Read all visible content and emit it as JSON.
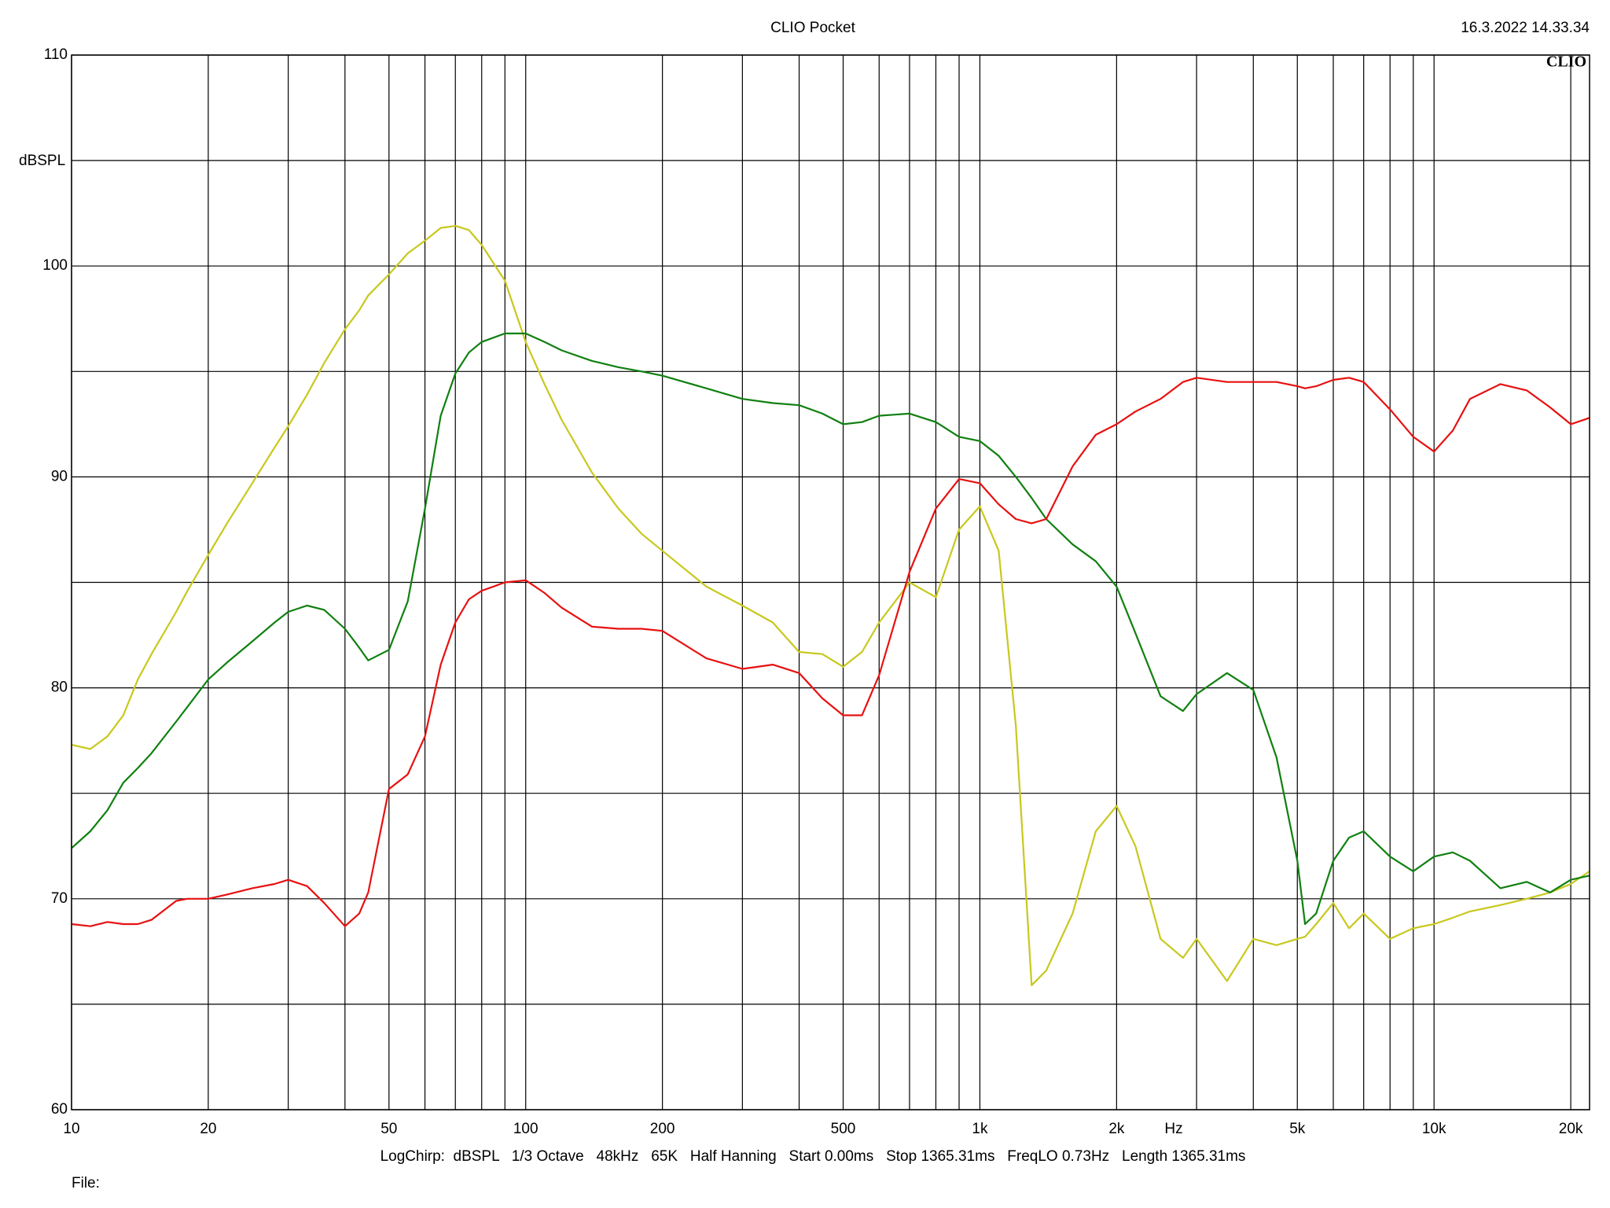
{
  "chart_data": {
    "type": "line",
    "title": "CLIO Pocket",
    "timestamp": "16.3.2022 14.33.34",
    "logo": "CLIO",
    "y_label": "dBSPL",
    "x_label": "Hz",
    "settings": "LogChirp:  dBSPL   1/3 Octave   48kHz   65K   Half Hanning   Start 0.00ms   Stop 1365.31ms   FreqLO 0.73Hz   Length 1365.31ms",
    "file_label": "File:",
    "x_log": true,
    "grid": true,
    "xlim": [
      10,
      22000
    ],
    "ylim": [
      60,
      110
    ],
    "xticks": [
      10,
      20,
      50,
      100,
      200,
      500,
      {
        "value": 1000,
        "label": "1k"
      },
      {
        "value": 2000,
        "label": "2k"
      },
      {
        "value": 5000,
        "label": "5k"
      },
      {
        "value": 10000,
        "label": "10k"
      },
      {
        "value": 20000,
        "label": "20k"
      }
    ],
    "x_minor_grid": [
      30,
      40,
      60,
      70,
      80,
      90,
      300,
      400,
      600,
      700,
      800,
      900,
      3000,
      4000,
      6000,
      7000,
      8000,
      9000
    ],
    "yticks": [
      60,
      70,
      80,
      90,
      100,
      110
    ],
    "y_minor_grid": [
      65,
      75,
      85,
      95,
      105
    ],
    "x": [
      10,
      11,
      12,
      13,
      14,
      15,
      17,
      18,
      20,
      22,
      25,
      28,
      30,
      33,
      36,
      40,
      43,
      45,
      50,
      55,
      60,
      65,
      70,
      75,
      80,
      90,
      100,
      110,
      120,
      140,
      160,
      180,
      200,
      250,
      300,
      350,
      400,
      450,
      500,
      550,
      600,
      700,
      800,
      900,
      1000,
      1100,
      1200,
      1300,
      1400,
      1600,
      1800,
      2000,
      2200,
      2500,
      2800,
      3000,
      3500,
      4000,
      4500,
      5000,
      5200,
      5500,
      6000,
      6500,
      7000,
      8000,
      9000,
      10000,
      11000,
      12000,
      14000,
      16000,
      18000,
      20000,
      22000
    ],
    "series": [
      {
        "color": "#c8c81e",
        "values": [
          77.3,
          77.1,
          77.7,
          78.7,
          80.4,
          81.6,
          83.6,
          84.6,
          86.3,
          87.8,
          89.7,
          91.4,
          92.4,
          93.9,
          95.4,
          97.0,
          97.9,
          98.6,
          99.6,
          100.6,
          101.2,
          101.8,
          101.9,
          101.7,
          101.0,
          99.3,
          96.4,
          94.4,
          92.7,
          90.2,
          88.5,
          87.3,
          86.5,
          84.8,
          83.9,
          83.1,
          81.7,
          81.6,
          81.0,
          81.7,
          83.1,
          85.0,
          84.3,
          87.5,
          88.6,
          86.5,
          78.2,
          65.9,
          66.6,
          69.3,
          73.2,
          74.4,
          72.5,
          68.1,
          67.2,
          68.1,
          66.1,
          68.1,
          67.8,
          68.1,
          68.2,
          68.8,
          69.8,
          68.6,
          69.3,
          68.1,
          68.6,
          68.8,
          69.1,
          69.4,
          69.7,
          70.0,
          70.3,
          70.7,
          71.3
        ]
      },
      {
        "color": "#108010",
        "values": [
          72.4,
          73.2,
          74.2,
          75.5,
          76.2,
          76.9,
          78.4,
          79.1,
          80.4,
          81.2,
          82.2,
          83.1,
          83.6,
          83.9,
          83.7,
          82.8,
          81.9,
          81.3,
          81.8,
          84.1,
          88.5,
          92.9,
          94.9,
          95.9,
          96.4,
          96.8,
          96.8,
          96.4,
          96.0,
          95.5,
          95.2,
          95.0,
          94.8,
          94.2,
          93.7,
          93.5,
          93.4,
          93.0,
          92.5,
          92.6,
          92.9,
          93.0,
          92.6,
          91.9,
          91.7,
          91.0,
          90.0,
          89.0,
          88.0,
          86.8,
          86.0,
          84.8,
          82.6,
          79.6,
          78.9,
          79.7,
          80.7,
          79.9,
          76.7,
          71.8,
          68.8,
          69.3,
          71.8,
          72.9,
          73.2,
          72.0,
          71.3,
          72.0,
          72.2,
          71.8,
          70.5,
          70.8,
          70.3,
          70.9,
          71.1
        ]
      },
      {
        "color": "#e81010",
        "values": [
          68.8,
          68.7,
          68.9,
          68.8,
          68.8,
          69.0,
          69.9,
          70.0,
          70.0,
          70.2,
          70.5,
          70.7,
          70.9,
          70.6,
          69.8,
          68.7,
          69.3,
          70.3,
          75.2,
          75.9,
          77.7,
          81.1,
          83.1,
          84.2,
          84.6,
          85.0,
          85.1,
          84.5,
          83.8,
          82.9,
          82.8,
          82.8,
          82.7,
          81.4,
          80.9,
          81.1,
          80.7,
          79.5,
          78.7,
          78.7,
          80.6,
          85.5,
          88.5,
          89.9,
          89.7,
          88.7,
          88.0,
          87.8,
          88.0,
          90.5,
          92.0,
          92.5,
          93.1,
          93.7,
          94.5,
          94.7,
          94.5,
          94.5,
          94.5,
          94.3,
          94.2,
          94.3,
          94.6,
          94.7,
          94.5,
          93.2,
          91.9,
          91.2,
          92.2,
          93.7,
          94.4,
          94.1,
          93.3,
          92.5,
          92.8
        ]
      }
    ]
  }
}
